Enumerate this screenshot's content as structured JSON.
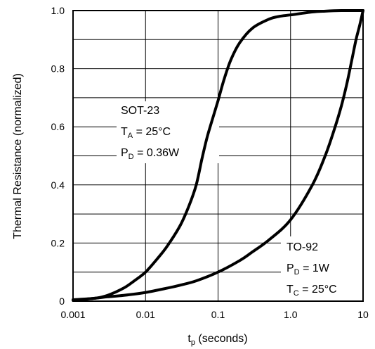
{
  "chart_data": {
    "type": "line",
    "x_scale": "log",
    "xlim": [
      0.001,
      10
    ],
    "ylim": [
      0,
      1.0
    ],
    "grid": true,
    "xlabel": {
      "main": "t",
      "sub": "p",
      "rest": " (seconds)"
    },
    "ylabel": "Thermal Resistance (normalized)",
    "x_ticks": [
      {
        "value": 0.001,
        "label": "0.001"
      },
      {
        "value": 0.01,
        "label": "0.01"
      },
      {
        "value": 0.1,
        "label": "0.1"
      },
      {
        "value": 1,
        "label": "1.0"
      },
      {
        "value": 10,
        "label": "10"
      }
    ],
    "y_ticks": [
      {
        "value": 0,
        "label": "0"
      },
      {
        "value": 0.2,
        "label": "0.2"
      },
      {
        "value": 0.4,
        "label": "0.4"
      },
      {
        "value": 0.6,
        "label": "0.6"
      },
      {
        "value": 0.8,
        "label": "0.8"
      },
      {
        "value": 1.0,
        "label": "1.0"
      }
    ],
    "series": [
      {
        "x": [
          0.001,
          0.002,
          0.003,
          0.005,
          0.007,
          0.01,
          0.015,
          0.02,
          0.03,
          0.04,
          0.05,
          0.06,
          0.07,
          0.08,
          0.1,
          0.12,
          0.15,
          0.2,
          0.3,
          0.5,
          0.7,
          1.0,
          2.0,
          3.0,
          5.0,
          10
        ],
        "y": [
          0.005,
          0.01,
          0.02,
          0.045,
          0.07,
          0.1,
          0.15,
          0.19,
          0.26,
          0.33,
          0.4,
          0.49,
          0.56,
          0.61,
          0.69,
          0.76,
          0.83,
          0.89,
          0.94,
          0.97,
          0.98,
          0.985,
          0.995,
          0.998,
          1.0,
          1.0
        ]
      },
      {
        "x": [
          0.001,
          0.002,
          0.003,
          0.005,
          0.01,
          0.02,
          0.03,
          0.05,
          0.1,
          0.2,
          0.3,
          0.5,
          1.0,
          2.0,
          3.0,
          4.0,
          5.0,
          6.0,
          7.0,
          8.0,
          9.0,
          10
        ],
        "y": [
          0.003,
          0.01,
          0.015,
          0.02,
          0.03,
          0.045,
          0.055,
          0.07,
          0.1,
          0.14,
          0.17,
          0.21,
          0.28,
          0.4,
          0.5,
          0.59,
          0.67,
          0.75,
          0.83,
          0.9,
          0.95,
          1.0
        ]
      }
    ],
    "annotations": {
      "sot23": {
        "name": "SOT-23",
        "temp": {
          "main": "T",
          "sub": "A",
          "rest": " = 25°C"
        },
        "power": {
          "main": "P",
          "sub": "D",
          "rest": " = 0.36W"
        }
      },
      "to92": {
        "name": "TO-92",
        "power": {
          "main": "P",
          "sub": "D",
          "rest": " = 1W"
        },
        "temp": {
          "main": "T",
          "sub": "C",
          "rest": " = 25°C"
        }
      }
    }
  }
}
